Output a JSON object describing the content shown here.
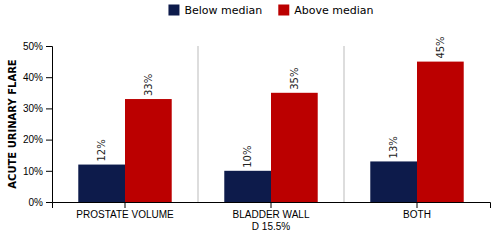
{
  "chart_data": {
    "type": "bar",
    "categories": [
      "PROSTATE VOLUME",
      "BLADDER WALL\nD 15.5%",
      "BOTH"
    ],
    "series": [
      {
        "name": "Below median",
        "color": "#0d1b4b",
        "values": [
          12,
          10,
          13
        ],
        "value_labels": [
          "12%",
          "10%",
          "13%"
        ]
      },
      {
        "name": "Above median",
        "color": "#bb0000",
        "values": [
          33,
          35,
          45
        ],
        "value_labels": [
          "33%",
          "35%",
          "45%"
        ]
      }
    ],
    "ylabel": "ACUTE URINARY FLARE",
    "ylim": [
      0,
      50
    ],
    "yticks": [
      {
        "value": 0,
        "label": "0%"
      },
      {
        "value": 10,
        "label": "10%"
      },
      {
        "value": 20,
        "label": "20%"
      },
      {
        "value": 30,
        "label": "30%"
      },
      {
        "value": 40,
        "label": "40%"
      },
      {
        "value": 50,
        "label": "50%"
      }
    ],
    "data_labels": true,
    "legend": "top",
    "grid": false
  }
}
